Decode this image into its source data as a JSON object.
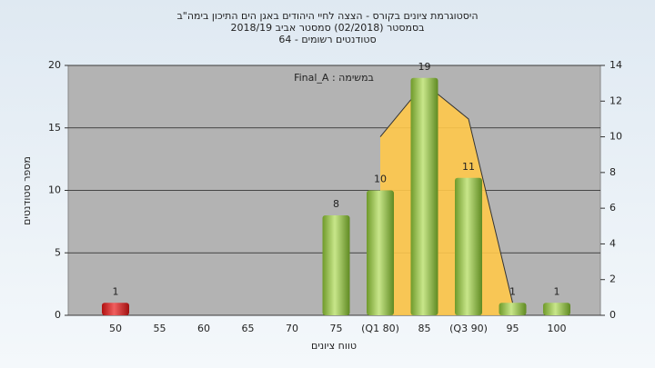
{
  "chart_data": {
    "type": "bar",
    "title": "היסטוגרמת ציונים בקורס - הצצה לחיי היהודים באגן הים התיכון בימה\"ב",
    "subtitle": "בסמסטר  (02/2018)  סמסטר אביב 2018/19",
    "subtitle2": "סטודנטים רשומים - 64",
    "annotation": "במשימה : Final_A",
    "x_label": "טווח ציונים",
    "y_label": "מספר סטודנטים",
    "categories": [
      "50",
      "55",
      "60",
      "65",
      "70",
      "75",
      "(Q1 80)",
      "85",
      "(Q3 90)",
      "95",
      "100"
    ],
    "values": [
      1,
      0,
      0,
      0,
      0,
      8,
      10,
      19,
      11,
      1,
      1
    ],
    "colors": [
      "#d42020",
      "#8fbf3f",
      "#8fbf3f",
      "#8fbf3f",
      "#8fbf3f",
      "#8fbf3f",
      "#8fbf3f",
      "#8fbf3f",
      "#8fbf3f",
      "#8fbf3f",
      "#8fbf3f"
    ],
    "series": [
      {
        "color": "#ffc84a",
        "axis": "y2",
        "values": [
          null,
          null,
          null,
          null,
          null,
          null,
          10,
          13,
          11,
          0.7,
          null
        ]
      }
    ],
    "ylim": [
      0,
      20
    ],
    "yticks": [
      0,
      5,
      10,
      15,
      20
    ],
    "y2lim": [
      0,
      14
    ],
    "y2ticks": [
      0,
      2,
      4,
      6,
      8,
      10,
      12,
      14
    ],
    "grid": true
  }
}
